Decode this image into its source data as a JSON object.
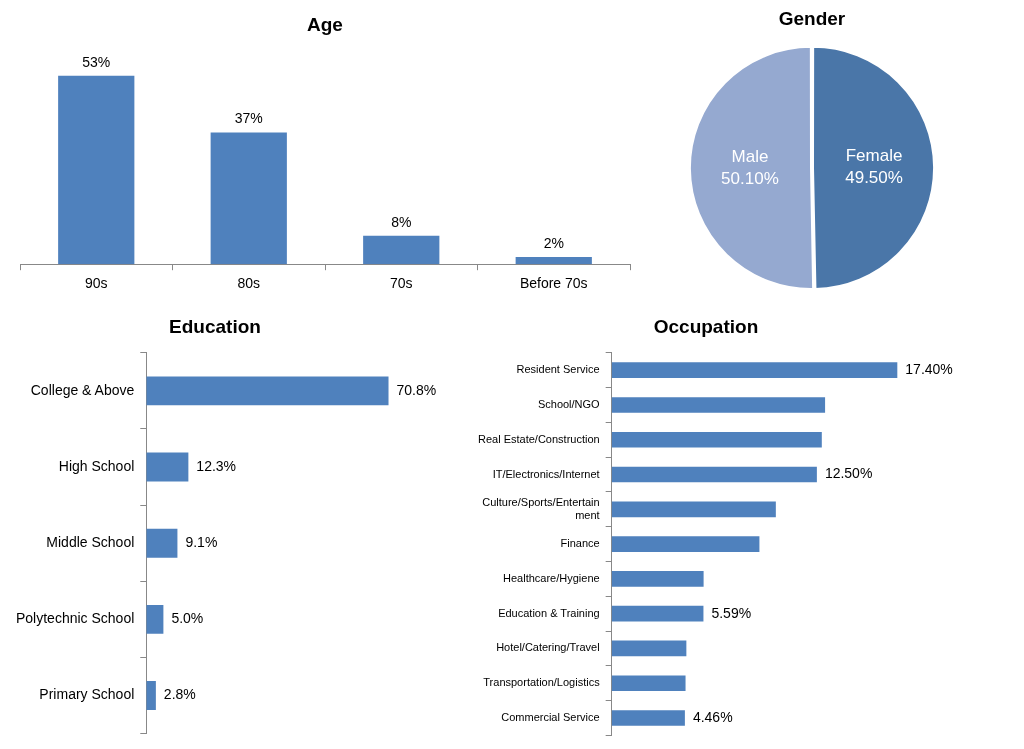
{
  "chart_data": [
    {
      "type": "bar",
      "title": "Age",
      "categories": [
        "90s",
        "80s",
        "70s",
        "Before 70s"
      ],
      "values": [
        53,
        37,
        8,
        2
      ],
      "value_labels": [
        "53%",
        "37%",
        "8%",
        "2%"
      ],
      "color": "#4f81bd",
      "legend": false
    },
    {
      "type": "pie",
      "title": "Gender",
      "categories": [
        "Female",
        "Male"
      ],
      "values": [
        49.5,
        50.1
      ],
      "value_labels": [
        "49.50%",
        "50.10%"
      ],
      "colors": [
        "#4a76a8",
        "#95a9d0"
      ],
      "legend": false
    },
    {
      "type": "bar",
      "orientation": "horizontal",
      "title": "Education",
      "categories": [
        "College & Above",
        "High School",
        "Middle School",
        "Polytechnic School",
        "Primary School"
      ],
      "values": [
        70.8,
        12.3,
        9.1,
        5.0,
        2.8
      ],
      "value_labels": [
        "70.8%",
        "12.3%",
        "9.1%",
        "5.0%",
        "2.8%"
      ],
      "color": "#4f81bd",
      "legend": false
    },
    {
      "type": "bar",
      "orientation": "horizontal",
      "title": "Occupation",
      "categories": [
        "Resident Service",
        "School/NGO",
        "Real Estate/Construction",
        "IT/Electronics/Internet",
        "Culture/Sports/Entertainment",
        "Finance",
        "Healthcare/Hygiene",
        "Education & Training",
        "Hotel/Catering/Travel",
        "Transportation/Logistics",
        "Commercial Service"
      ],
      "values": [
        17.4,
        13.0,
        12.8,
        12.5,
        10.0,
        9.0,
        5.6,
        5.59,
        4.55,
        4.5,
        4.46
      ],
      "value_labels": [
        "17.40%",
        null,
        null,
        "12.50%",
        null,
        null,
        null,
        "5.59%",
        null,
        null,
        "4.46%"
      ],
      "color": "#4f81bd",
      "legend": false
    }
  ]
}
